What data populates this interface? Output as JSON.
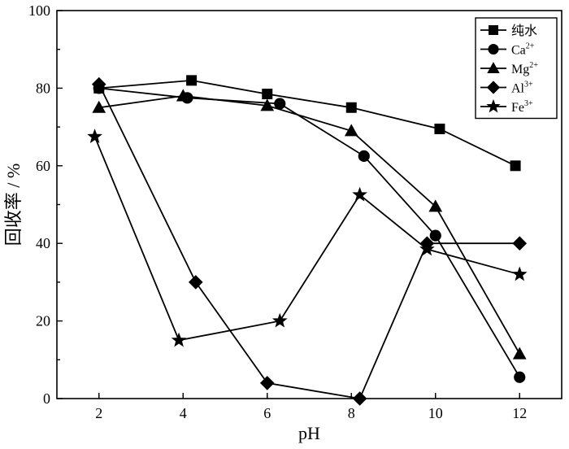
{
  "chart_data": {
    "type": "line",
    "title": "",
    "xlabel": "pH",
    "ylabel": "回收率 / %",
    "xlim": [
      1,
      13
    ],
    "ylim": [
      0,
      100
    ],
    "xticks": [
      2,
      4,
      6,
      8,
      10,
      12
    ],
    "yticks": [
      0,
      20,
      40,
      60,
      80,
      100
    ],
    "grid": false,
    "legend_position": "top-right",
    "series": [
      {
        "name": "纯水",
        "base": "纯水",
        "sup": "",
        "marker": "square",
        "x": [
          2.0,
          4.2,
          6.0,
          8.0,
          10.1,
          11.9
        ],
        "y": [
          80,
          82,
          78.5,
          75,
          69.5,
          60
        ]
      },
      {
        "name": "Ca2+",
        "base": "Ca",
        "sup": "2+",
        "marker": "circle",
        "x": [
          2.0,
          4.1,
          6.3,
          8.3,
          10.0,
          12.0
        ],
        "y": [
          80,
          77.5,
          76,
          62.5,
          42,
          5.5
        ]
      },
      {
        "name": "Mg2+",
        "base": "Mg",
        "sup": "2+",
        "marker": "triangle",
        "x": [
          2.0,
          4.0,
          6.0,
          8.0,
          10.0,
          12.0
        ],
        "y": [
          75,
          78,
          75.5,
          69,
          49.5,
          11.5
        ]
      },
      {
        "name": "Al3+",
        "base": "Al",
        "sup": "3+",
        "marker": "diamond",
        "x": [
          2.0,
          4.3,
          6.0,
          8.2,
          9.8,
          12.0
        ],
        "y": [
          81,
          30,
          4,
          0,
          40,
          40
        ]
      },
      {
        "name": "Fe3+",
        "base": "Fe",
        "sup": "3+",
        "marker": "star",
        "x": [
          1.9,
          3.9,
          6.3,
          8.2,
          9.8,
          12.0
        ],
        "y": [
          67.5,
          15,
          20,
          52.5,
          38.5,
          32
        ]
      }
    ]
  }
}
